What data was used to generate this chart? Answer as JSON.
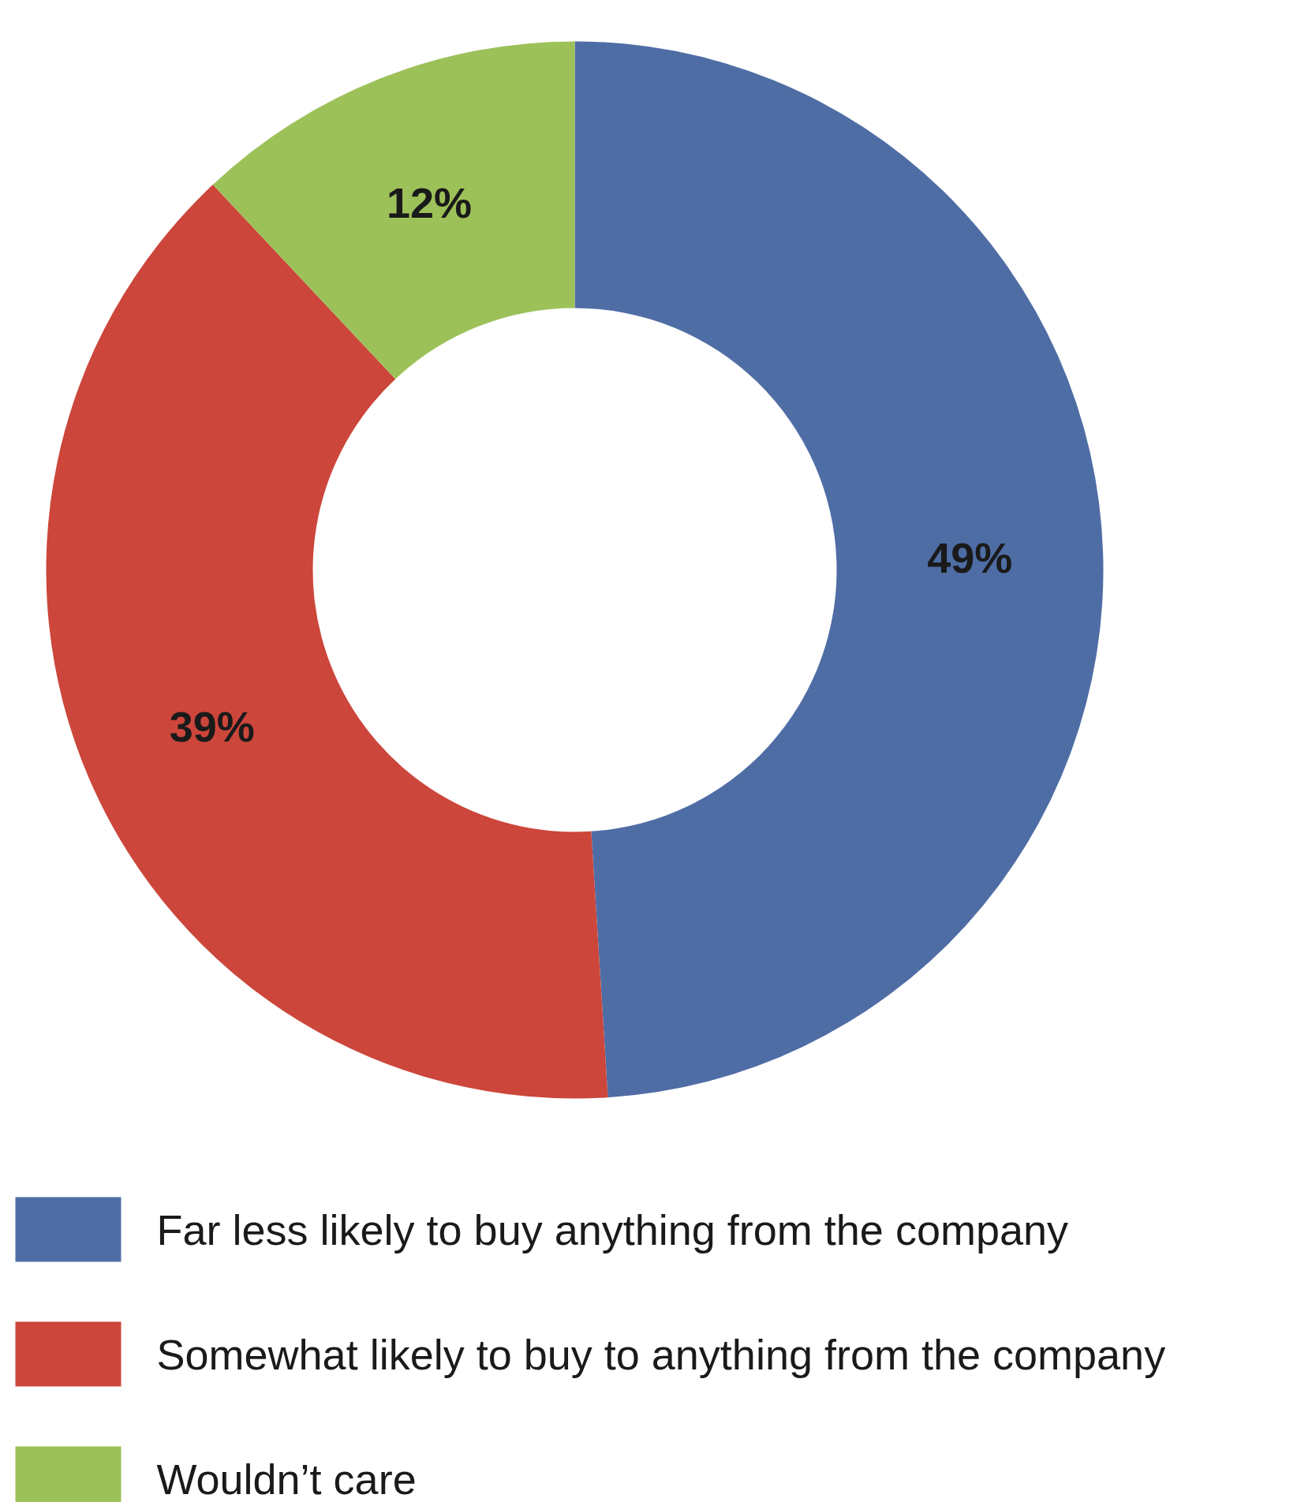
{
  "chart_data": {
    "type": "donut",
    "categories": [
      "Far less likely to buy anything from the company",
      "Somewhat likely to buy to anything from the company",
      "Wouldn’t care"
    ],
    "values": [
      49,
      39,
      12
    ],
    "colors": [
      "#4f6da5",
      "#cc463b",
      "#9dc159"
    ],
    "value_labels": [
      "49%",
      "39%",
      "12%"
    ],
    "legend": "bottom"
  }
}
